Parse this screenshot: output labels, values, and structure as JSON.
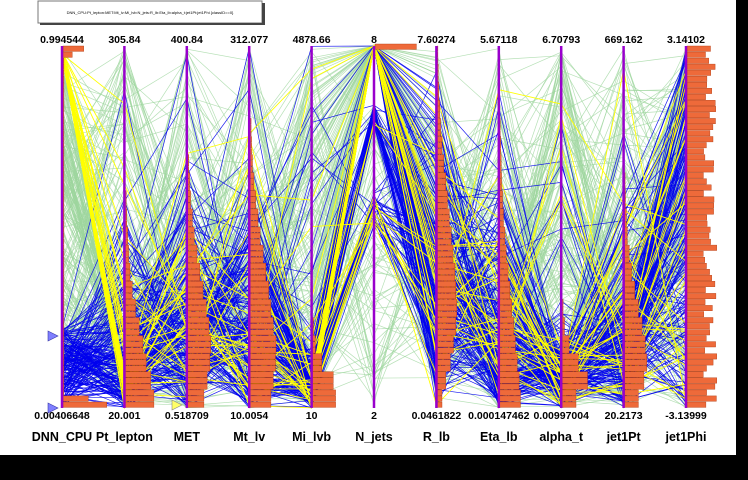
{
  "title_box": {
    "text": "DNN_CPU:Pt_lepton:MET:Mt_lv:Mi_lvb:N_jets:R_lb:Eta_lb:alpha_t:jet1Pt:jet1Phi {classID==0}"
  },
  "colors": {
    "background": "#ffffff",
    "axis": "#9900cc",
    "histogram_fill": "#ee6a3a",
    "histogram_stroke": "#b03a10",
    "series_background": "#9ed69e",
    "series_signal": "#0000ee",
    "series_selected": "#ffff00",
    "marker": "#7f7fff"
  },
  "chart_data": {
    "type": "parallel_coordinates",
    "axes": [
      {
        "name": "DNN_CPU",
        "max": "0.994544",
        "min": "0.00406648"
      },
      {
        "name": "Pt_lepton",
        "max": "305.84",
        "min": "20.001"
      },
      {
        "name": "MET",
        "max": "400.84",
        "min": "0.518709"
      },
      {
        "name": "Mt_lv",
        "max": "312.077",
        "min": "10.0054"
      },
      {
        "name": "Mi_lvb",
        "max": "4878.66",
        "min": "10"
      },
      {
        "name": "N_jets",
        "max": "8",
        "min": "2"
      },
      {
        "name": "R_lb",
        "max": "7.60274",
        "min": "0.0461822"
      },
      {
        "name": "Eta_lb",
        "max": "5.67118",
        "min": "0.000147462"
      },
      {
        "name": "alpha_t",
        "max": "6.70793",
        "min": "0.00997004"
      },
      {
        "name": "jet1Pt",
        "max": "669.162",
        "min": "20.2173"
      },
      {
        "name": "jet1Phi",
        "max": "3.14102",
        "min": "-3.13999"
      }
    ],
    "series": [
      {
        "key": "background",
        "color": "#9ed69e",
        "line_count": 260
      },
      {
        "key": "signal",
        "color": "#0000ee",
        "line_count": 170
      },
      {
        "key": "selected",
        "color": "#ffff00",
        "line_count": 32
      }
    ],
    "histogram_profiles": {
      "DNN_CPU": [
        0.95,
        0.3,
        0.05,
        0.02,
        0.02,
        0.02,
        0.02,
        0.02,
        0.02,
        0.02,
        0.02,
        0.02,
        0.02,
        0.02,
        0.03,
        0.03,
        0.03,
        0.04,
        0.05,
        0.06
      ],
      "Pt_lepton": [
        0.62,
        0.55,
        0.45,
        0.38,
        0.3,
        0.22,
        0.15,
        0.1,
        0.07,
        0.05,
        0.03,
        0.02,
        0.0,
        0.0,
        0.0,
        0.0,
        0.0,
        0.0,
        0.0,
        0.0
      ],
      "MET": [
        0.35,
        0.42,
        0.48,
        0.5,
        0.46,
        0.4,
        0.33,
        0.26,
        0.2,
        0.14,
        0.1,
        0.06,
        0.04,
        0.02,
        0.0,
        0.0,
        0.0,
        0.0,
        0.0,
        0.0
      ],
      "Mt_lv": [
        0.45,
        0.5,
        0.55,
        0.56,
        0.5,
        0.45,
        0.4,
        0.34,
        0.28,
        0.22,
        0.17,
        0.12,
        0.08,
        0.05,
        0.03,
        0.02,
        0.0,
        0.0,
        0.0,
        0.0
      ],
      "Mi_lvb": [
        0.5,
        0.45,
        0.2,
        0.06,
        0.02,
        0.0,
        0.0,
        0.0,
        0.0,
        0.0,
        0.0,
        0.0,
        0.0,
        0.0,
        0.0,
        0.0,
        0.0,
        0.0,
        0.0,
        0.0
      ],
      "N_jets": [
        0.2,
        0.0,
        0.0,
        0.0,
        0.0,
        0.0,
        0.0,
        0.0,
        0.0,
        0.0,
        0.0,
        0.0,
        0.0,
        0.0,
        0.0,
        0.0,
        0.0,
        0.0,
        0.0,
        0.0
      ],
      "R_lb": [
        0.1,
        0.18,
        0.28,
        0.35,
        0.4,
        0.42,
        0.4,
        0.38,
        0.34,
        0.3,
        0.26,
        0.22,
        0.18,
        0.14,
        0.1,
        0.07,
        0.05,
        0.03,
        0.02,
        0.01
      ],
      "Eta_lb": [
        0.45,
        0.42,
        0.38,
        0.34,
        0.3,
        0.26,
        0.22,
        0.18,
        0.14,
        0.11,
        0.08,
        0.06,
        0.04,
        0.03,
        0.02,
        0.01,
        0.0,
        0.0,
        0.0,
        0.0
      ],
      "alpha_t": [
        0.3,
        0.55,
        0.35,
        0.15,
        0.05,
        0.02,
        0.0,
        0.0,
        0.0,
        0.0,
        0.0,
        0.0,
        0.0,
        0.0,
        0.0,
        0.0,
        0.0,
        0.0,
        0.0,
        0.0
      ],
      "jet1Pt": [
        0.3,
        0.42,
        0.48,
        0.45,
        0.38,
        0.3,
        0.22,
        0.15,
        0.1,
        0.06,
        0.04,
        0.02,
        0.01,
        0.0,
        0.0,
        0.0,
        0.0,
        0.0,
        0.0,
        0.0
      ],
      "jet1Phi": [
        0.5,
        0.5,
        0.5,
        0.5,
        0.5,
        0.5,
        0.5,
        0.5,
        0.5,
        0.5,
        0.5,
        0.5,
        0.5,
        0.5,
        0.5,
        0.5,
        0.5,
        0.5,
        0.5,
        0.5
      ]
    }
  }
}
